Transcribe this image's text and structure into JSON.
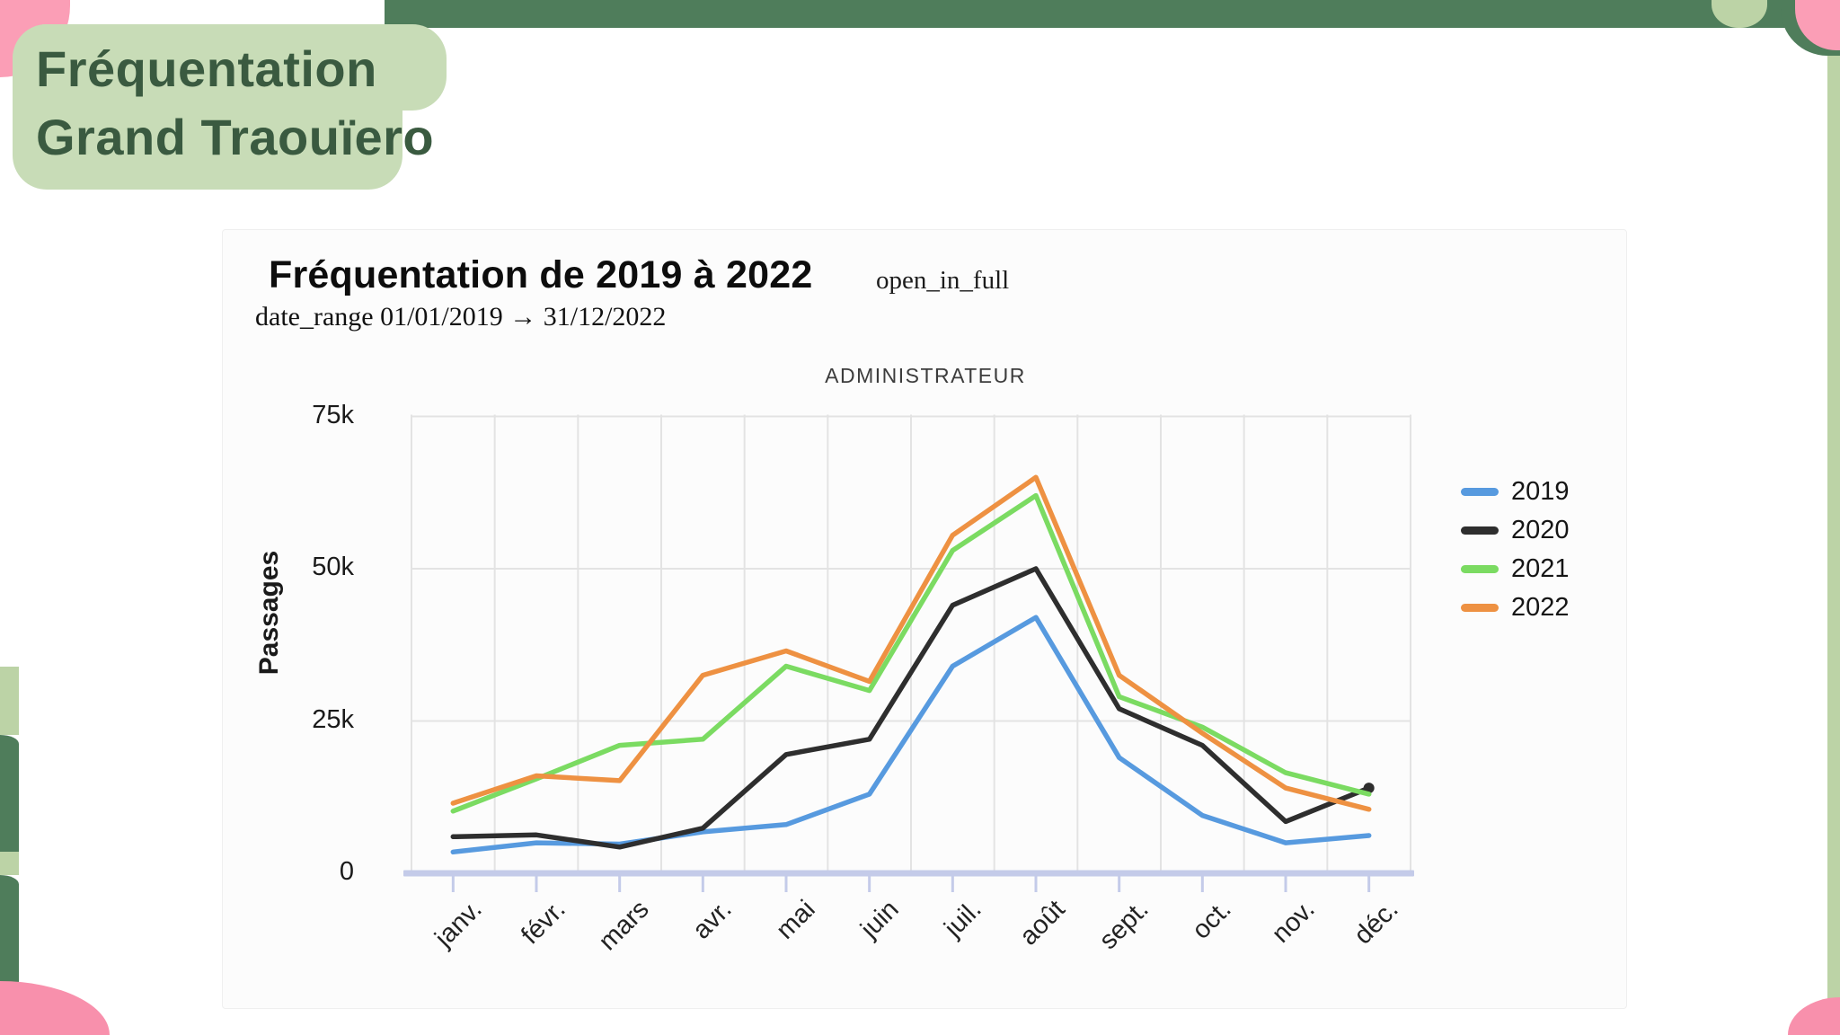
{
  "page": {
    "header": {
      "line1": "Fréquentation",
      "line2": "Grand Traouïero"
    },
    "card": {
      "title": "Fréquentation de 2019 à 2022",
      "expand_icon_text": "open_in_full",
      "subtitle": "date_range 01/01/2019 → 31/12/2022",
      "watermark": "ADMINISTRATEUR"
    }
  },
  "colors": {
    "dark_green": "#4F7D5B",
    "light_green": "#C8DCB7",
    "strip_green": "#BCD3A6",
    "pink": "#FB9EB6",
    "pink_deep": "#F890AC",
    "header_text": "#3A5A40",
    "grid": "#E3E3E3",
    "axis_line": "#C4CBE9",
    "watermark_text": "#3C3C3C"
  },
  "chart_data": {
    "type": "line",
    "title": "Fréquentation de 2019 à 2022",
    "xlabel": "",
    "ylabel": "Passages",
    "categories": [
      "janv.",
      "févr.",
      "mars",
      "avr.",
      "mai",
      "juin",
      "juil.",
      "août",
      "sept.",
      "oct.",
      "nov.",
      "déc."
    ],
    "y_ticks": [
      {
        "label": "0",
        "value": 0
      },
      {
        "label": "25k",
        "value": 25000
      },
      {
        "label": "50k",
        "value": 50000
      },
      {
        "label": "75k",
        "value": 75000
      }
    ],
    "ylim": [
      0,
      75000
    ],
    "grid": true,
    "legend_position": "right",
    "series": [
      {
        "name": "2019",
        "color": "#579ADF",
        "values": [
          3500,
          5000,
          4800,
          6800,
          8000,
          13000,
          34000,
          42000,
          19000,
          9500,
          5000,
          6200
        ]
      },
      {
        "name": "2020",
        "color": "#2E2E2E",
        "end_marker": true,
        "values": [
          6000,
          6300,
          4300,
          7400,
          19500,
          22000,
          44000,
          50000,
          27000,
          21000,
          8500,
          14000
        ]
      },
      {
        "name": "2021",
        "color": "#7BDB62",
        "values": [
          10200,
          15500,
          21000,
          22000,
          34000,
          30000,
          53000,
          62000,
          29000,
          24000,
          16500,
          13000
        ]
      },
      {
        "name": "2022",
        "color": "#EE9142",
        "values": [
          11500,
          16000,
          15200,
          32500,
          36500,
          31500,
          55500,
          65000,
          32500,
          23000,
          14000,
          10500
        ]
      }
    ]
  }
}
